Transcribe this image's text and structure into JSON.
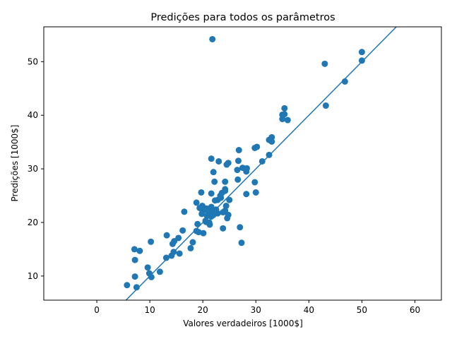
{
  "chart_data": {
    "type": "scatter",
    "title": "Predições para todos os parâmetros",
    "xlabel": "Valores verdadeiros [1000$]",
    "ylabel": "Predições [1000$]",
    "xlim": [
      -10,
      65
    ],
    "ylim": [
      5.5,
      56.5
    ],
    "xticks": [
      0,
      10,
      20,
      30,
      40,
      50,
      60
    ],
    "yticks": [
      10,
      20,
      30,
      40,
      50
    ],
    "grid": false,
    "legend": "none",
    "colors": {
      "points": "#1f77b4",
      "reference_line": "#1f77b4",
      "axes": "#000000"
    },
    "reference_line": {
      "from": [
        5,
        5
      ],
      "to": [
        56.5,
        56.5
      ]
    },
    "points": {
      "x": [
        21.8,
        50,
        43,
        46.8,
        50,
        43.2,
        35.4,
        35,
        35.4,
        36,
        35,
        33,
        33,
        32.5,
        29.8,
        30.2,
        32.5,
        31.2,
        26.8,
        21.6,
        23,
        24.5,
        24.8,
        22,
        27.5,
        28.3,
        28.2,
        26.7,
        26.5,
        22.2,
        24.2,
        29.8,
        19.7,
        21.6,
        24.2,
        26.6,
        30,
        28.2,
        25,
        23.3,
        23.4,
        24.2,
        22.8,
        23.6,
        24.4,
        24.8,
        24.2,
        22.3,
        18.8,
        19.9,
        20.2,
        20.7,
        21.1,
        21.7,
        20,
        19.8,
        22.8,
        21.6,
        20.8,
        22,
        22.4,
        24.6,
        23.8,
        21.2,
        20.6,
        21.3,
        19,
        18.8,
        20.1,
        19.2,
        23.8,
        27,
        27.3,
        16.2,
        16.5,
        13.2,
        10.2,
        7.1,
        8.1,
        15.4,
        14.3,
        14.6,
        18.1,
        17.7,
        14.5,
        15.6,
        14.1,
        13.1,
        7.2,
        9.6,
        11.9,
        9.9,
        10.3,
        7.2,
        5.7,
        7.5,
        21.5,
        20.5,
        22.1,
        21.6,
        19.4,
        22.5
      ],
      "y": [
        54.2,
        51.8,
        49.6,
        46.3,
        50.2,
        41.8,
        41.3,
        39.3,
        40.2,
        39.1,
        40.1,
        35.9,
        35.1,
        35.4,
        33.9,
        34.1,
        32.6,
        31.4,
        33.5,
        31.9,
        31.4,
        30.8,
        31.1,
        29.4,
        30.2,
        30.1,
        29.5,
        31.5,
        29.8,
        27.6,
        27.6,
        27.5,
        25.6,
        25.4,
        26.2,
        28,
        25.6,
        25.3,
        24.2,
        25,
        24.6,
        25.9,
        24.2,
        25.5,
        23.1,
        21.4,
        22.2,
        24.1,
        23.7,
        23.1,
        22.7,
        22.6,
        21.9,
        22.3,
        22.1,
        21.6,
        21.7,
        21.1,
        21.2,
        21.4,
        21.9,
        20.8,
        21.9,
        20,
        20.1,
        19.6,
        19.7,
        18.4,
        18,
        18.2,
        18.9,
        19.1,
        16.2,
        18.5,
        22,
        17.6,
        16.4,
        15,
        14.7,
        17.1,
        16,
        16.5,
        16.3,
        15.2,
        14.5,
        14.2,
        13.8,
        13.4,
        13,
        11.6,
        10.8,
        10.5,
        9.8,
        9.9,
        8.3,
        7.9,
        22.5,
        20.3,
        21.6,
        22.9,
        22.7,
        22.4
      ]
    }
  }
}
